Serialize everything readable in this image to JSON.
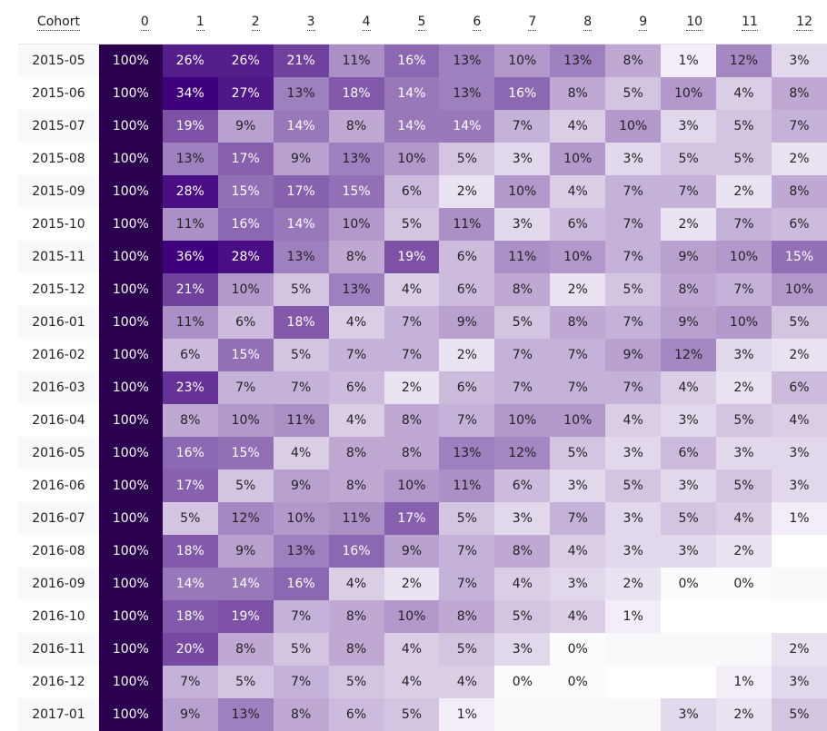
{
  "chart_data": {
    "type": "heatmap",
    "title": "",
    "xlabel": "",
    "ylabel": "",
    "row_header": "Cohort",
    "columns": [
      "0",
      "1",
      "2",
      "3",
      "4",
      "5",
      "6",
      "7",
      "8",
      "9",
      "10",
      "11",
      "12"
    ],
    "rows": [
      {
        "cohort": "2015-05",
        "values": [
          100,
          26,
          26,
          21,
          11,
          16,
          13,
          10,
          13,
          8,
          1,
          12,
          3
        ]
      },
      {
        "cohort": "2015-06",
        "values": [
          100,
          34,
          27,
          13,
          18,
          14,
          13,
          16,
          8,
          5,
          10,
          4,
          8
        ]
      },
      {
        "cohort": "2015-07",
        "values": [
          100,
          19,
          9,
          14,
          8,
          14,
          14,
          7,
          4,
          10,
          3,
          5,
          7
        ]
      },
      {
        "cohort": "2015-08",
        "values": [
          100,
          13,
          17,
          9,
          13,
          10,
          5,
          3,
          10,
          3,
          5,
          5,
          2
        ]
      },
      {
        "cohort": "2015-09",
        "values": [
          100,
          28,
          15,
          17,
          15,
          6,
          2,
          10,
          4,
          7,
          7,
          2,
          8
        ]
      },
      {
        "cohort": "2015-10",
        "values": [
          100,
          11,
          16,
          14,
          10,
          5,
          11,
          3,
          6,
          7,
          2,
          7,
          6
        ]
      },
      {
        "cohort": "2015-11",
        "values": [
          100,
          36,
          28,
          13,
          8,
          19,
          6,
          11,
          10,
          7,
          9,
          10,
          15
        ]
      },
      {
        "cohort": "2015-12",
        "values": [
          100,
          21,
          10,
          5,
          13,
          4,
          6,
          8,
          2,
          5,
          8,
          7,
          10
        ]
      },
      {
        "cohort": "2016-01",
        "values": [
          100,
          11,
          6,
          18,
          4,
          7,
          9,
          5,
          8,
          7,
          9,
          10,
          5
        ]
      },
      {
        "cohort": "2016-02",
        "values": [
          100,
          6,
          15,
          5,
          7,
          7,
          2,
          7,
          7,
          9,
          12,
          3,
          2
        ]
      },
      {
        "cohort": "2016-03",
        "values": [
          100,
          23,
          7,
          7,
          6,
          2,
          6,
          7,
          7,
          7,
          4,
          2,
          6
        ]
      },
      {
        "cohort": "2016-04",
        "values": [
          100,
          8,
          10,
          11,
          4,
          8,
          7,
          10,
          10,
          4,
          3,
          5,
          4
        ]
      },
      {
        "cohort": "2016-05",
        "values": [
          100,
          16,
          15,
          4,
          8,
          8,
          13,
          12,
          5,
          3,
          6,
          3,
          3
        ]
      },
      {
        "cohort": "2016-06",
        "values": [
          100,
          17,
          5,
          9,
          8,
          10,
          11,
          6,
          3,
          5,
          3,
          5,
          3
        ]
      },
      {
        "cohort": "2016-07",
        "values": [
          100,
          5,
          12,
          10,
          11,
          17,
          5,
          3,
          7,
          3,
          5,
          4,
          1
        ]
      },
      {
        "cohort": "2016-08",
        "values": [
          100,
          18,
          9,
          13,
          16,
          9,
          7,
          8,
          4,
          3,
          3,
          2,
          null
        ]
      },
      {
        "cohort": "2016-09",
        "values": [
          100,
          14,
          14,
          16,
          4,
          2,
          7,
          4,
          3,
          2,
          0,
          0,
          null
        ]
      },
      {
        "cohort": "2016-10",
        "values": [
          100,
          18,
          19,
          7,
          8,
          10,
          8,
          5,
          4,
          1,
          null,
          null,
          null
        ]
      },
      {
        "cohort": "2016-11",
        "values": [
          100,
          20,
          8,
          5,
          8,
          4,
          5,
          3,
          0,
          null,
          null,
          null,
          2
        ]
      },
      {
        "cohort": "2016-12",
        "values": [
          100,
          7,
          5,
          7,
          5,
          4,
          4,
          0,
          0,
          null,
          null,
          1,
          3
        ]
      },
      {
        "cohort": "2017-01",
        "values": [
          100,
          9,
          13,
          8,
          6,
          5,
          1,
          null,
          null,
          null,
          3,
          2,
          5
        ]
      }
    ],
    "value_suffix": "%",
    "colors": {
      "low": "#fcfbfd",
      "high": "#3f007d",
      "max": "#2a004f",
      "text_dark": "#222222",
      "text_light": "#ffffff"
    }
  }
}
